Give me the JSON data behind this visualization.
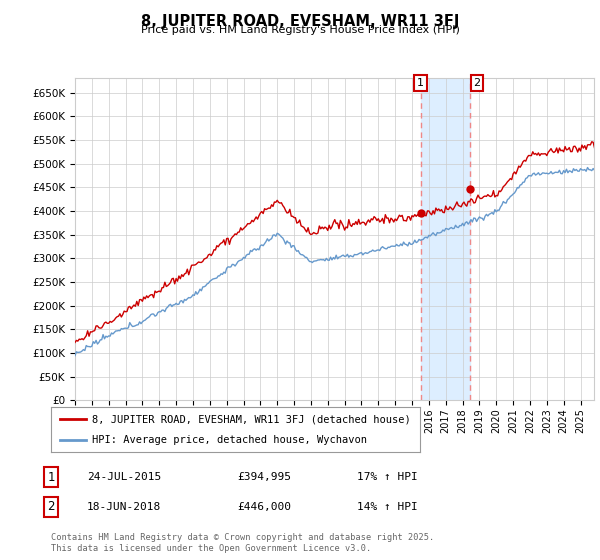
{
  "title": "8, JUPITER ROAD, EVESHAM, WR11 3FJ",
  "subtitle": "Price paid vs. HM Land Registry's House Price Index (HPI)",
  "ylabel_ticks": [
    "£0",
    "£50K",
    "£100K",
    "£150K",
    "£200K",
    "£250K",
    "£300K",
    "£350K",
    "£400K",
    "£450K",
    "£500K",
    "£550K",
    "£600K",
    "£650K"
  ],
  "ytick_values": [
    0,
    50000,
    100000,
    150000,
    200000,
    250000,
    300000,
    350000,
    400000,
    450000,
    500000,
    550000,
    600000,
    650000
  ],
  "ylim": [
    0,
    680000
  ],
  "xlim_start": 1995.0,
  "xlim_end": 2025.8,
  "xtick_years": [
    1995,
    1996,
    1997,
    1998,
    1999,
    2000,
    2001,
    2002,
    2003,
    2004,
    2005,
    2006,
    2007,
    2008,
    2009,
    2010,
    2011,
    2012,
    2013,
    2014,
    2015,
    2016,
    2017,
    2018,
    2019,
    2020,
    2021,
    2022,
    2023,
    2024,
    2025
  ],
  "line1_color": "#cc0000",
  "line2_color": "#6699cc",
  "shade_color": "#ddeeff",
  "vline1_x": 2015.55,
  "vline2_x": 2018.46,
  "vline_color": "#ee8888",
  "marker1_x": 2015.55,
  "marker1_y": 394995,
  "marker2_x": 2018.46,
  "marker2_y": 446000,
  "legend_line1": "8, JUPITER ROAD, EVESHAM, WR11 3FJ (detached house)",
  "legend_line2": "HPI: Average price, detached house, Wychavon",
  "annotation1_num": "1",
  "annotation1_date": "24-JUL-2015",
  "annotation1_price": "£394,995",
  "annotation1_hpi": "17% ↑ HPI",
  "annotation2_num": "2",
  "annotation2_date": "18-JUN-2018",
  "annotation2_price": "£446,000",
  "annotation2_hpi": "14% ↑ HPI",
  "footer": "Contains HM Land Registry data © Crown copyright and database right 2025.\nThis data is licensed under the Open Government Licence v3.0.",
  "background_color": "#ffffff",
  "grid_color": "#cccccc"
}
